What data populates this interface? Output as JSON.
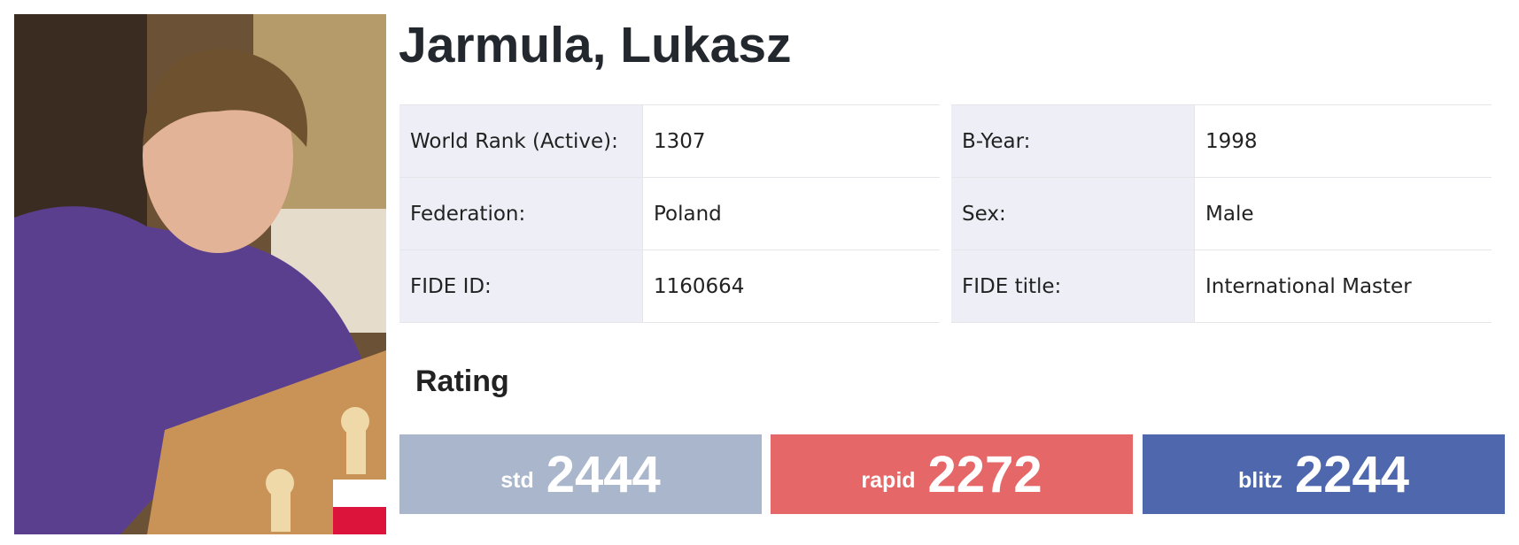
{
  "profile": {
    "name": "Jarmula, Lukasz",
    "left_fields": [
      [
        "World Rank (Active):",
        "1307"
      ],
      [
        "Federation:",
        "Poland"
      ],
      [
        "FIDE ID:",
        "1160664"
      ]
    ],
    "right_fields": [
      [
        "B-Year:",
        "1998"
      ],
      [
        "Sex:",
        "Male"
      ],
      [
        "FIDE title:",
        "International Master"
      ]
    ],
    "rating_heading": "Rating",
    "ratings": [
      {
        "label": "std",
        "value": "2444"
      },
      {
        "label": "rapid",
        "value": "2272"
      },
      {
        "label": "blitz",
        "value": "2244"
      }
    ]
  }
}
